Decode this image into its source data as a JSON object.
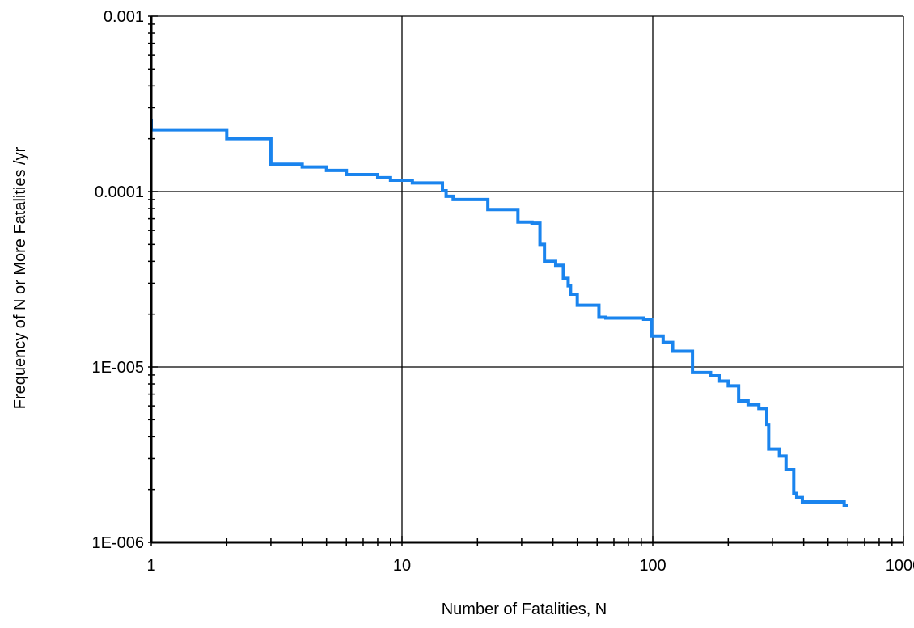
{
  "chart_data": {
    "type": "line",
    "title": "",
    "xlabel": "Number of Fatalities, N",
    "ylabel": "Frequency of N or More Fatalities /yr",
    "x_scale": "log",
    "y_scale": "log",
    "xlim": [
      1,
      1000
    ],
    "ylim": [
      1e-06,
      0.001
    ],
    "grid": true,
    "legend": "none",
    "x_tick_labels": [
      "1",
      "10",
      "100",
      "1000"
    ],
    "y_tick_labels": [
      "0.001",
      "0.0001",
      "1E-005",
      "1E-006"
    ],
    "x_ticks": [
      1,
      10,
      100,
      1000
    ],
    "y_ticks": [
      0.001,
      0.0001,
      1e-05,
      1e-06
    ],
    "line_color": "#1a84ee",
    "series": [
      {
        "name": "",
        "step": true,
        "points": [
          [
            1,
            0.00026
          ],
          [
            1,
            0.000225
          ],
          [
            2,
            0.000225
          ],
          [
            2,
            0.0002
          ],
          [
            3,
            0.0002
          ],
          [
            3,
            0.000143
          ],
          [
            4,
            0.000143
          ],
          [
            4,
            0.000138
          ],
          [
            5,
            0.000138
          ],
          [
            5,
            0.000132
          ],
          [
            6,
            0.000132
          ],
          [
            6,
            0.000125
          ],
          [
            8,
            0.000125
          ],
          [
            8,
            0.00012
          ],
          [
            9,
            0.00012
          ],
          [
            9,
            0.000116
          ],
          [
            11,
            0.000116
          ],
          [
            11,
            0.000112
          ],
          [
            14.5,
            0.000112
          ],
          [
            14.5,
            0.000101
          ],
          [
            15,
            0.000101
          ],
          [
            15,
            9.4e-05
          ],
          [
            16,
            9.4e-05
          ],
          [
            16,
            9e-05
          ],
          [
            22,
            9e-05
          ],
          [
            22,
            7.9e-05
          ],
          [
            29,
            7.9e-05
          ],
          [
            29,
            6.7e-05
          ],
          [
            33,
            6.7e-05
          ],
          [
            33,
            6.6e-05
          ],
          [
            35.5,
            6.6e-05
          ],
          [
            35.5,
            5e-05
          ],
          [
            37,
            5e-05
          ],
          [
            37,
            4e-05
          ],
          [
            41,
            4e-05
          ],
          [
            41,
            3.8e-05
          ],
          [
            44,
            3.8e-05
          ],
          [
            44,
            3.2e-05
          ],
          [
            46,
            3.2e-05
          ],
          [
            46,
            2.9e-05
          ],
          [
            47,
            2.9e-05
          ],
          [
            47,
            2.6e-05
          ],
          [
            50,
            2.6e-05
          ],
          [
            50,
            2.25e-05
          ],
          [
            61,
            2.25e-05
          ],
          [
            61,
            1.92e-05
          ],
          [
            65,
            1.92e-05
          ],
          [
            65,
            1.9e-05
          ],
          [
            92,
            1.9e-05
          ],
          [
            92,
            1.87e-05
          ],
          [
            99,
            1.87e-05
          ],
          [
            99,
            1.5e-05
          ],
          [
            110,
            1.5e-05
          ],
          [
            110,
            1.38e-05
          ],
          [
            120,
            1.38e-05
          ],
          [
            120,
            1.23e-05
          ],
          [
            144,
            1.23e-05
          ],
          [
            144,
            9.3e-06
          ],
          [
            170,
            9.3e-06
          ],
          [
            170,
            8.9e-06
          ],
          [
            185,
            8.9e-06
          ],
          [
            185,
            8.3e-06
          ],
          [
            200,
            8.3e-06
          ],
          [
            200,
            7.8e-06
          ],
          [
            220,
            7.8e-06
          ],
          [
            220,
            6.4e-06
          ],
          [
            240,
            6.4e-06
          ],
          [
            240,
            6.1e-06
          ],
          [
            265,
            6.1e-06
          ],
          [
            265,
            5.8e-06
          ],
          [
            285,
            5.8e-06
          ],
          [
            285,
            4.7e-06
          ],
          [
            290,
            4.7e-06
          ],
          [
            290,
            3.4e-06
          ],
          [
            320,
            3.4e-06
          ],
          [
            320,
            3.1e-06
          ],
          [
            340,
            3.1e-06
          ],
          [
            340,
            2.6e-06
          ],
          [
            365,
            2.6e-06
          ],
          [
            365,
            1.9e-06
          ],
          [
            375,
            1.9e-06
          ],
          [
            375,
            1.8e-06
          ],
          [
            395,
            1.8e-06
          ],
          [
            395,
            1.7e-06
          ],
          [
            580,
            1.7e-06
          ],
          [
            580,
            1.63e-06
          ],
          [
            600,
            1.63e-06
          ]
        ]
      }
    ]
  }
}
